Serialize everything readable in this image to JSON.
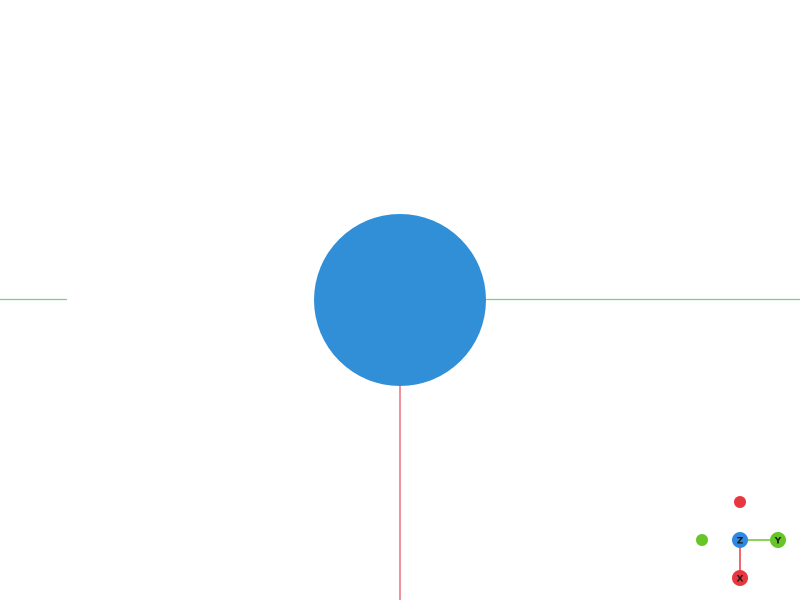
{
  "viewport": {
    "background_color": "#ffffff"
  },
  "scene": {
    "sphere": {
      "color": "#318fd8"
    },
    "axes": {
      "x_color": "#e3495c",
      "y_color": "#78d27a"
    }
  },
  "gizmo": {
    "x_axis": {
      "label": "X",
      "color": "#e8383f"
    },
    "y_axis": {
      "label": "Y",
      "color": "#67c52a"
    },
    "z_axis": {
      "label": "Z",
      "color": "#2f89e0"
    },
    "neg_x_color": "#e8383f",
    "neg_y_color": "#67c52a"
  }
}
